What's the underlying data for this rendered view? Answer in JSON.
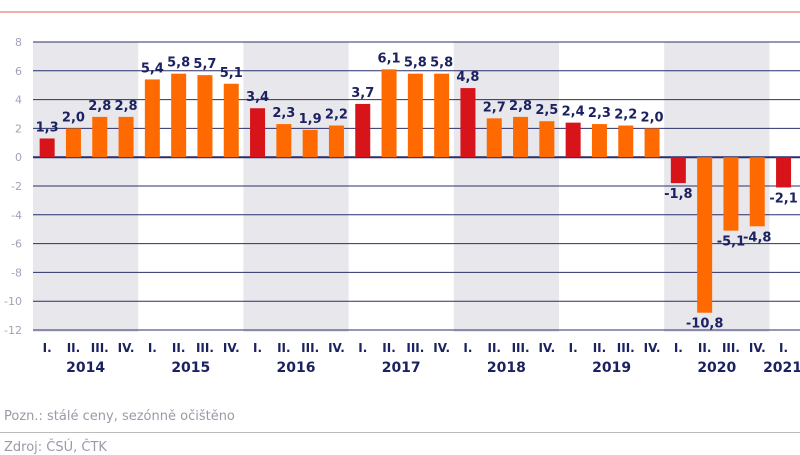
{
  "chart_data": {
    "type": "bar",
    "years": [
      "2014",
      "2015",
      "2016",
      "2017",
      "2018",
      "2019",
      "2020",
      "2021"
    ],
    "quarter_labels": [
      "I.",
      "II.",
      "III.",
      "IV."
    ],
    "categories": [
      "2014 I",
      "2014 II",
      "2014 III",
      "2014 IV",
      "2015 I",
      "2015 II",
      "2015 III",
      "2015 IV",
      "2016 I",
      "2016 II",
      "2016 III",
      "2016 IV",
      "2017 I",
      "2017 II",
      "2017 III",
      "2017 IV",
      "2018 I",
      "2018 II",
      "2018 III",
      "2018 IV",
      "2019 I",
      "2019 II",
      "2019 III",
      "2019 IV",
      "2020 I",
      "2020 II",
      "2020 III",
      "2020 IV",
      "2021 I"
    ],
    "values": [
      1.3,
      2.0,
      2.8,
      2.8,
      5.4,
      5.8,
      5.7,
      5.1,
      3.4,
      2.3,
      1.9,
      2.2,
      3.7,
      6.1,
      5.8,
      5.8,
      4.8,
      2.7,
      2.8,
      2.5,
      2.4,
      2.3,
      2.2,
      2.0,
      -1.8,
      -10.8,
      -5.1,
      -4.8,
      -2.1
    ],
    "data_labels": [
      "1,3",
      "2,0",
      "2,8",
      "2,8",
      "5,4",
      "5,8",
      "5,7",
      "5,1",
      "3,4",
      "2,3",
      "1,9",
      "2,2",
      "3,7",
      "6,1",
      "5,8",
      "5,8",
      "4,8",
      "2,7",
      "2,8",
      "2,5",
      "2,4",
      "2,3",
      "2,2",
      "2,0",
      "-1,8",
      "-10,8",
      "-5,1",
      "-4,8",
      "-2,1"
    ],
    "highlight_indices": [
      0,
      8,
      12,
      16,
      20,
      24,
      28
    ],
    "ylim": [
      -12,
      8
    ],
    "yticks": [
      8,
      6,
      4,
      2,
      0,
      -2,
      -4,
      -6,
      -8,
      -10,
      -12
    ],
    "grid": true,
    "colors": {
      "bar": "#ff6a00",
      "highlight": "#d7141a",
      "grid": "#2a2f6b",
      "label": "#1c2260",
      "band": "#e7e7ec",
      "tick": "#a0a3b8"
    }
  },
  "note": "Pozn.: stálé ceny, sezónně očištěno",
  "source": "Zdroj: ČSÚ, ČTK"
}
